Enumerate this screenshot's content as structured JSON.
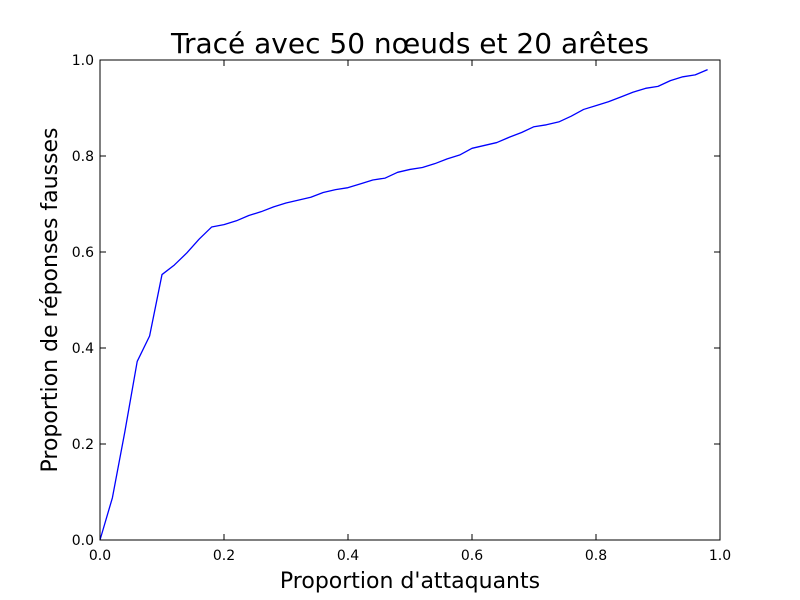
{
  "chart_data": {
    "type": "line",
    "title": "Tracé avec 50 nœuds et 20 arêtes",
    "xlabel": "Proportion d'attaquants",
    "ylabel": "Proportion de réponses fausses",
    "xlim": [
      0.0,
      1.0
    ],
    "ylim": [
      0.0,
      1.0
    ],
    "xticks": [
      "0.0",
      "0.2",
      "0.4",
      "0.6",
      "0.8",
      "1.0"
    ],
    "yticks": [
      "0.0",
      "0.2",
      "0.4",
      "0.6",
      "0.8",
      "1.0"
    ],
    "grid": false,
    "legend": "none",
    "series": [
      {
        "color": "#0000ff",
        "x": [
          0.0,
          0.02,
          0.04,
          0.06,
          0.08,
          0.1,
          0.12,
          0.14,
          0.16,
          0.18,
          0.2,
          0.22,
          0.24,
          0.26,
          0.28,
          0.3,
          0.32,
          0.34,
          0.36,
          0.38,
          0.4,
          0.42,
          0.44,
          0.46,
          0.48,
          0.5,
          0.52,
          0.54,
          0.56,
          0.58,
          0.6,
          0.62,
          0.64,
          0.66,
          0.68,
          0.7,
          0.72,
          0.74,
          0.76,
          0.78,
          0.8,
          0.82,
          0.84,
          0.86,
          0.88,
          0.9,
          0.92,
          0.94,
          0.96,
          0.98
        ],
        "y": [
          0.0,
          0.088,
          0.225,
          0.372,
          0.425,
          0.553,
          0.573,
          0.598,
          0.627,
          0.652,
          0.657,
          0.665,
          0.676,
          0.684,
          0.694,
          0.702,
          0.708,
          0.714,
          0.724,
          0.73,
          0.734,
          0.742,
          0.75,
          0.754,
          0.766,
          0.772,
          0.776,
          0.784,
          0.794,
          0.802,
          0.816,
          0.822,
          0.828,
          0.839,
          0.849,
          0.861,
          0.865,
          0.871,
          0.883,
          0.897,
          0.905,
          0.913,
          0.923,
          0.933,
          0.941,
          0.945,
          0.957,
          0.965,
          0.969,
          0.98
        ]
      }
    ]
  }
}
